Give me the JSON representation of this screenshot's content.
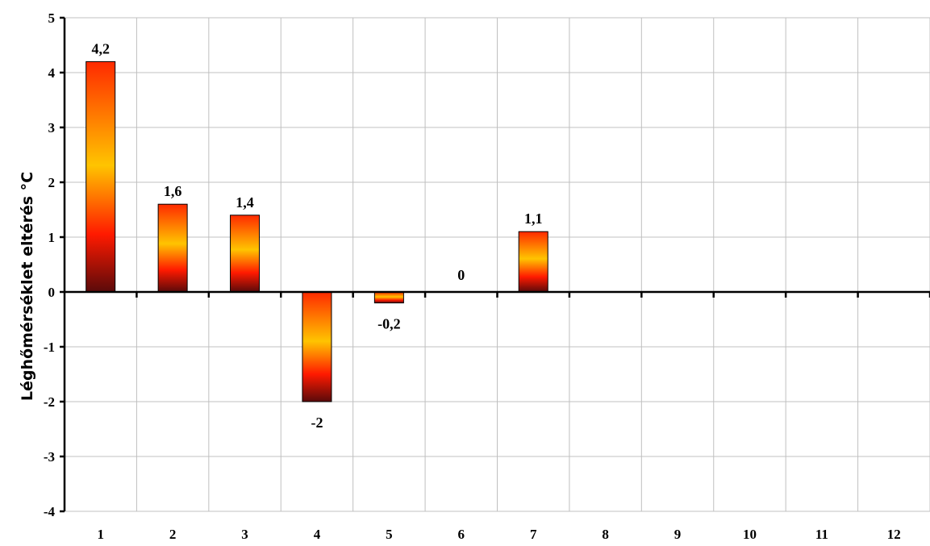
{
  "chart_data": {
    "type": "bar",
    "title": "",
    "xlabel": "",
    "ylabel": "Léghőmérséklet eltérés °C",
    "categories": [
      "1",
      "2",
      "3",
      "4",
      "5",
      "6",
      "7",
      "8",
      "9",
      "10",
      "11",
      "12"
    ],
    "values": [
      4.2,
      1.6,
      1.4,
      -2,
      -0.2,
      0,
      1.1,
      null,
      null,
      null,
      null,
      null
    ],
    "data_labels": [
      "4,2",
      "1,6",
      "1,4",
      "-2",
      "-0,2",
      "0",
      "1,1",
      "",
      "",
      "",
      "",
      ""
    ],
    "ylim": [
      -4,
      5
    ],
    "y_ticks": [
      "-4",
      "-3",
      "-2",
      "-1",
      "0",
      "1",
      "2",
      "3",
      "4",
      "5"
    ],
    "grid": true,
    "legend": "none",
    "colors": {
      "bar_gradient_top": "#ff2a00",
      "bar_gradient_middle": "#ffc400",
      "bar_gradient_bottom": "#5a0a0a",
      "grid": "#c0c0c0",
      "axis": "#000000"
    }
  }
}
